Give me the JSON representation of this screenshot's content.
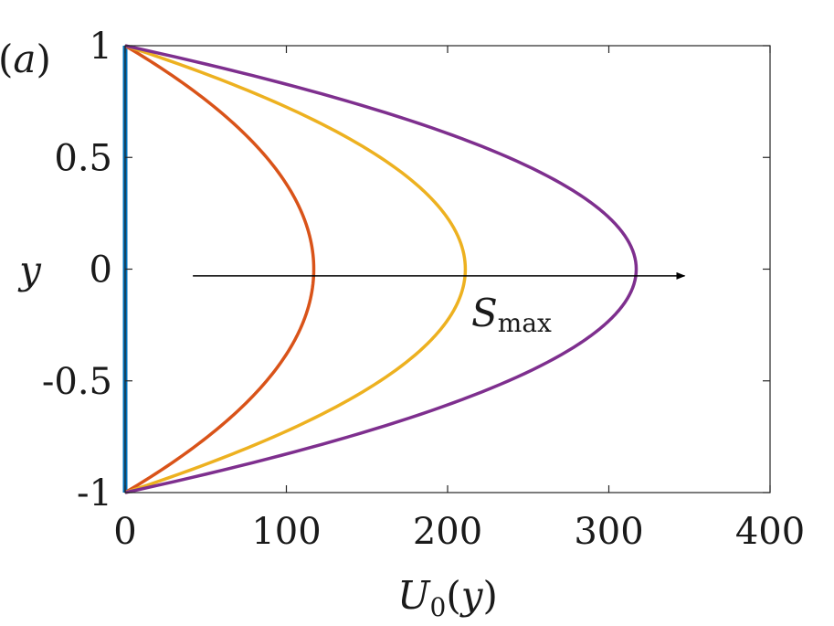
{
  "chart_data": {
    "type": "line",
    "panel_label": {
      "open": "(",
      "letter": "a",
      "close": ")"
    },
    "xlabel": {
      "main": "U",
      "sub": "0",
      "open": "(",
      "var": "y",
      "close": ")"
    },
    "ylabel": "y",
    "xlim": [
      0,
      400
    ],
    "ylim": [
      -1,
      1
    ],
    "xticks": [
      0,
      100,
      200,
      300,
      400
    ],
    "xtick_labels": [
      "0",
      "100",
      "200",
      "300",
      "400"
    ],
    "yticks": [
      -1,
      -0.5,
      0,
      0.5,
      1
    ],
    "ytick_labels": [
      "-1",
      "-0.5",
      "0",
      "0.5",
      "1"
    ],
    "grid": false,
    "profile": "U0(y) = Umax * (1 - y^2)",
    "series": [
      {
        "peak": 0,
        "color": "#0072BD"
      },
      {
        "peak": 117,
        "color": "#D95319"
      },
      {
        "peak": 211,
        "color": "#EDB120"
      },
      {
        "peak": 317,
        "color": "#7E2F8E"
      }
    ],
    "annotation": {
      "text_main": "S",
      "text_sub": "max",
      "arrow_from": [
        42,
        -0.03
      ],
      "arrow_to": [
        347,
        -0.03
      ]
    }
  }
}
